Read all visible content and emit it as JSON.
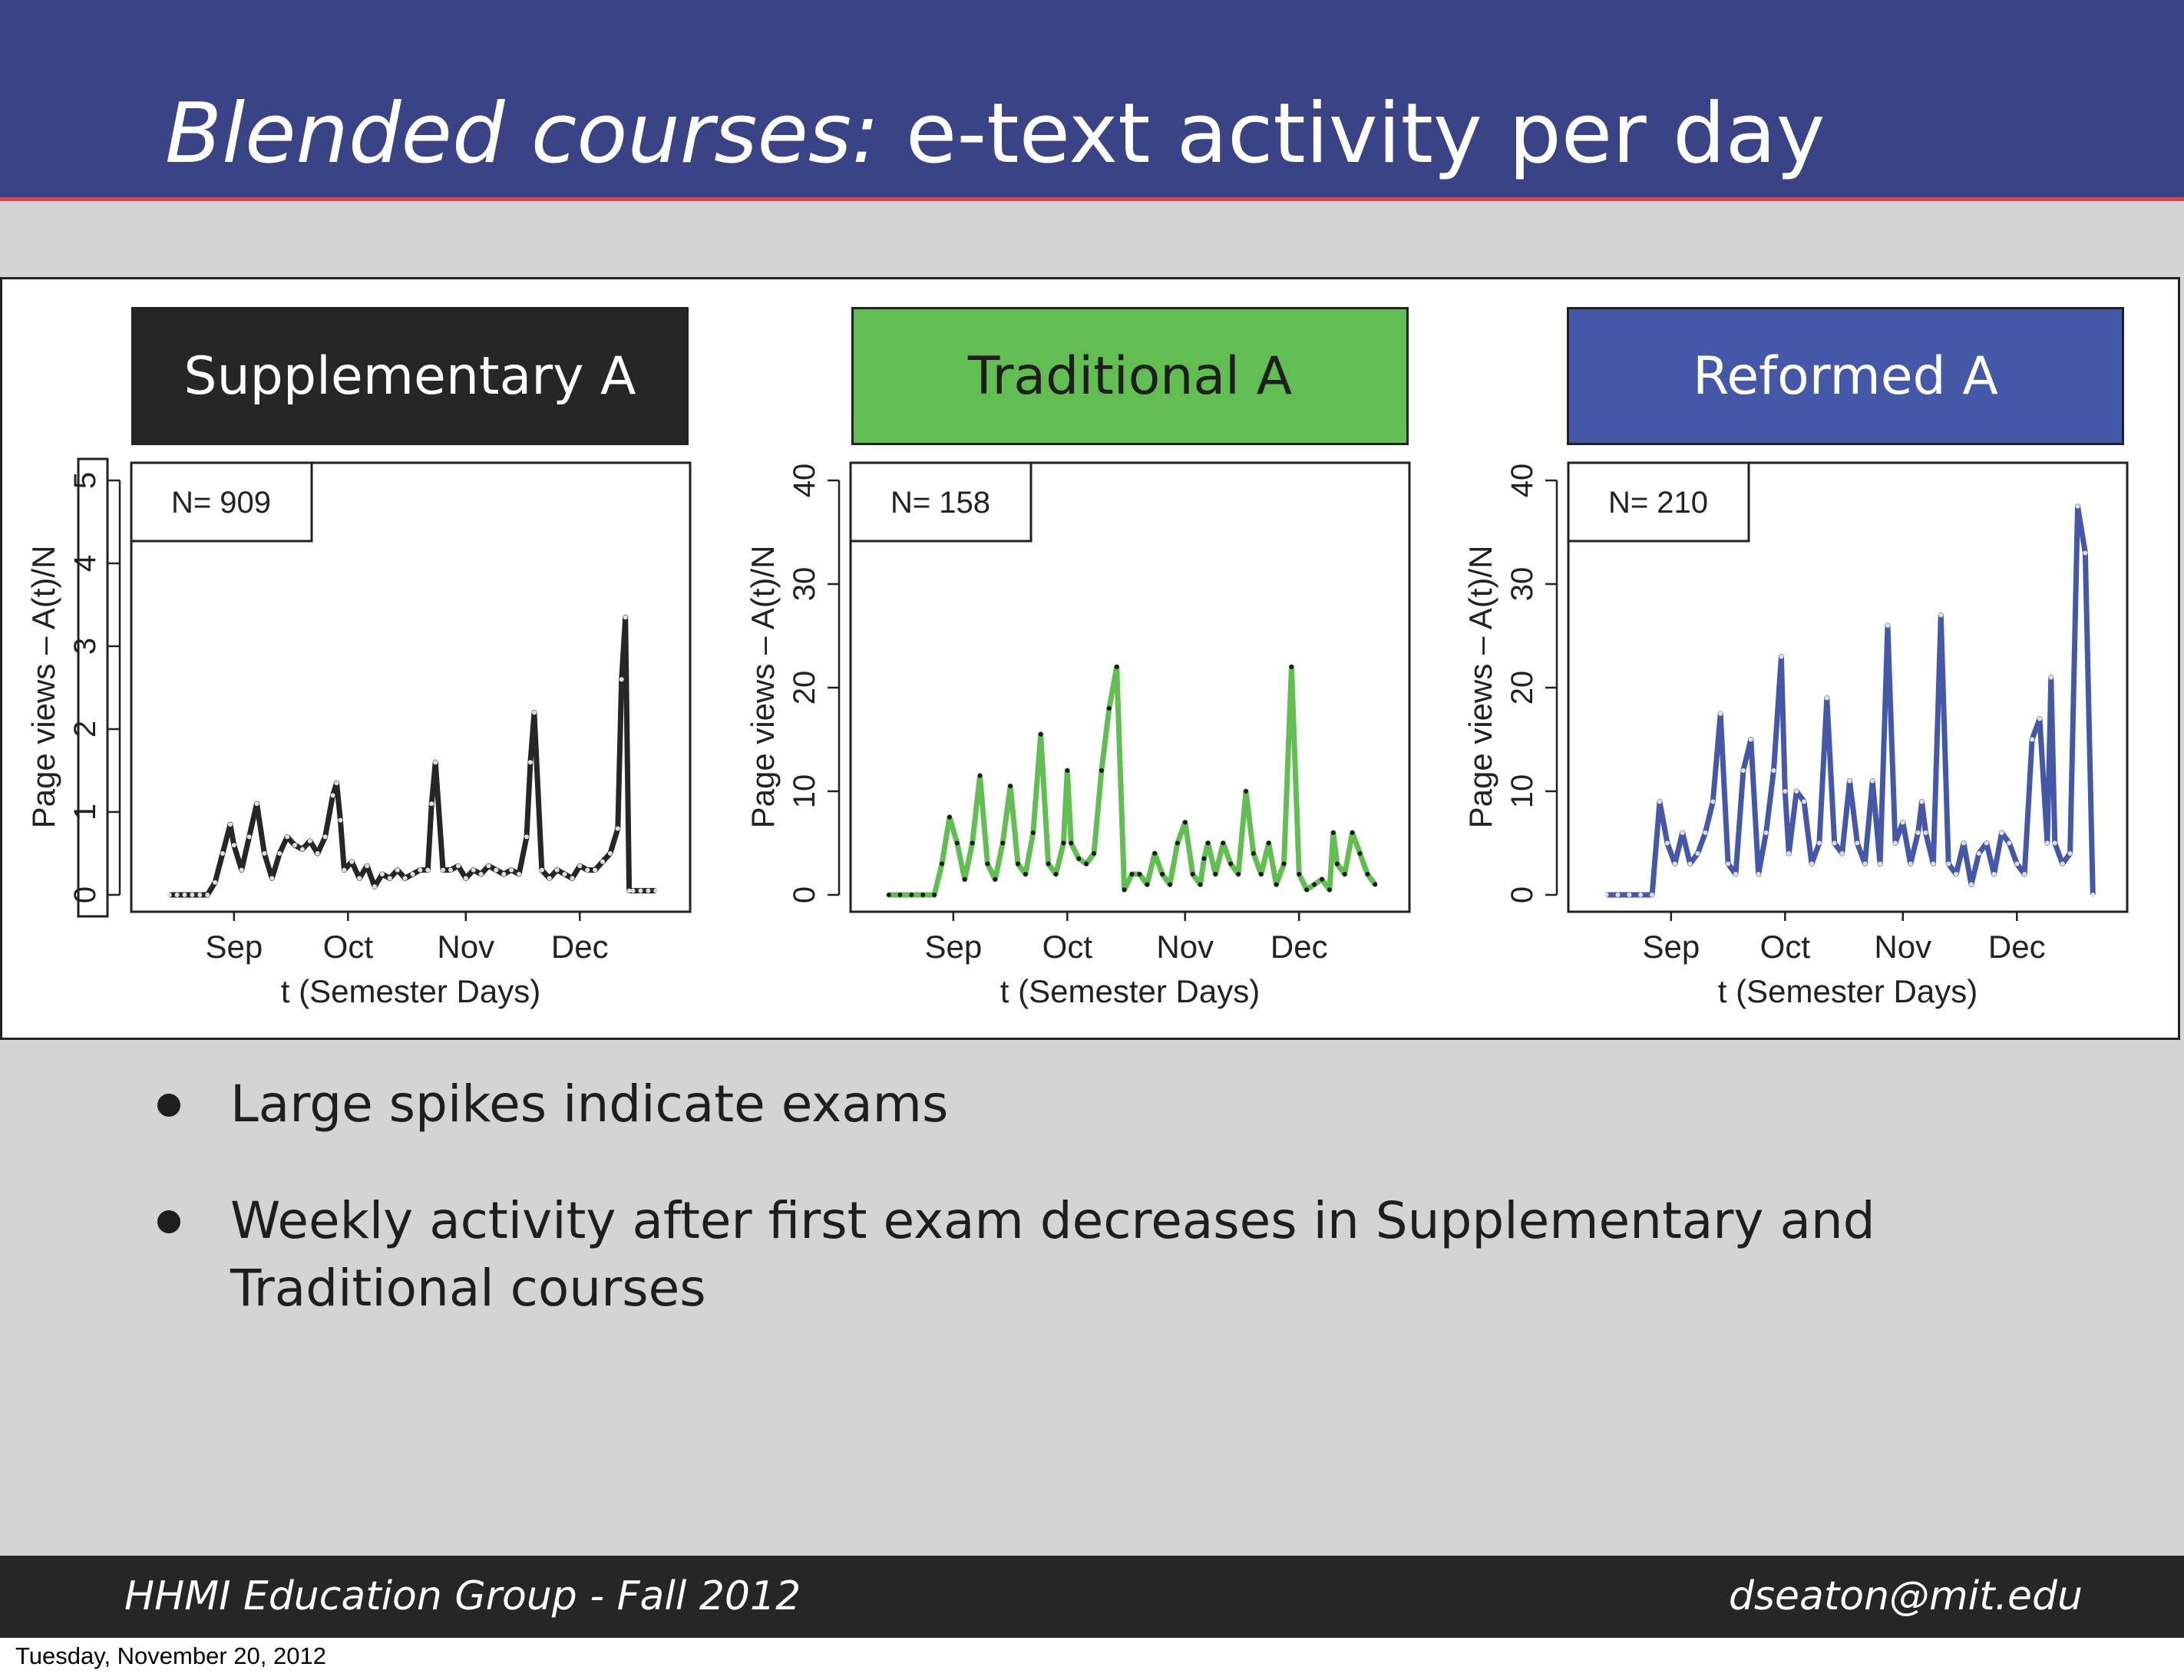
{
  "header": {
    "title_italic": "Blended courses:",
    "title_rest": " e-text activity per day",
    "bg_color": "#3b4387",
    "rule_color": "#d4454e"
  },
  "courses": [
    {
      "label": "Supplementary A",
      "bg_color": "#262626",
      "text_color": "#ffffff"
    },
    {
      "label": "Traditional A",
      "bg_color": "#62bd52",
      "text_color": "#1e1e1e"
    },
    {
      "label": "Reformed A",
      "bg_color": "#4558a8",
      "text_color": "#ffffff"
    }
  ],
  "chart_data": [
    {
      "type": "line",
      "title": "Supplementary A",
      "legend_text": "N= 909",
      "legend_placement": "top-left",
      "xlabel": "t (Semester Days)",
      "ylabel": "Page views – A(t)/N",
      "x_ticks": [
        "Sep",
        "Oct",
        "Nov",
        "Dec"
      ],
      "y_ticks": [
        0,
        1,
        2,
        3,
        4,
        5
      ],
      "ylim": [
        0,
        5
      ],
      "color": "#262626",
      "series": [
        {
          "x": [
            "08-15",
            "08-17",
            "08-19",
            "08-21",
            "08-23",
            "08-25",
            "08-27",
            "08-29",
            "08-31",
            "09-01",
            "09-03",
            "09-05",
            "09-07",
            "09-09",
            "09-11",
            "09-13",
            "09-15",
            "09-17",
            "09-19",
            "09-21",
            "09-23",
            "09-25",
            "09-27",
            "09-28",
            "09-29",
            "09-30",
            "10-02",
            "10-04",
            "10-06",
            "10-08",
            "10-10",
            "10-12",
            "10-14",
            "10-16",
            "10-18",
            "10-20",
            "10-22",
            "10-23",
            "10-24",
            "10-26",
            "10-28",
            "10-30",
            "11-01",
            "11-03",
            "11-05",
            "11-07",
            "11-09",
            "11-11",
            "11-13",
            "11-15",
            "11-17",
            "11-18",
            "11-19",
            "11-21",
            "11-23",
            "11-25",
            "11-27",
            "11-29",
            "12-01",
            "12-03",
            "12-05",
            "12-07",
            "12-09",
            "12-11",
            "12-12",
            "12-13",
            "12-14",
            "12-15",
            "12-17",
            "12-19",
            "12-21"
          ],
          "y": [
            0,
            0,
            0,
            0,
            0,
            0,
            0.15,
            0.5,
            0.85,
            0.6,
            0.3,
            0.7,
            1.1,
            0.5,
            0.2,
            0.5,
            0.7,
            0.6,
            0.55,
            0.65,
            0.5,
            0.7,
            1.2,
            1.35,
            0.9,
            0.3,
            0.4,
            0.2,
            0.35,
            0.1,
            0.25,
            0.2,
            0.3,
            0.2,
            0.25,
            0.3,
            0.3,
            1.1,
            1.6,
            0.3,
            0.3,
            0.35,
            0.2,
            0.3,
            0.25,
            0.35,
            0.3,
            0.25,
            0.3,
            0.25,
            0.7,
            1.6,
            2.2,
            0.3,
            0.2,
            0.3,
            0.25,
            0.2,
            0.35,
            0.3,
            0.3,
            0.4,
            0.5,
            0.8,
            2.6,
            3.35,
            0.05,
            0.05,
            0.05,
            0.05,
            0.05
          ]
        }
      ]
    },
    {
      "type": "line",
      "title": "Traditional A",
      "legend_text": "N= 158",
      "legend_placement": "top-left",
      "xlabel": "t (Semester Days)",
      "ylabel": "Page views – A(t)/N",
      "x_ticks": [
        "Sep",
        "Oct",
        "Nov",
        "Dec"
      ],
      "y_ticks": [
        0,
        10,
        20,
        30,
        40
      ],
      "ylim": [
        0,
        40
      ],
      "color": "#62bd52",
      "series": [
        {
          "x": [
            "08-15",
            "08-18",
            "08-21",
            "08-24",
            "08-27",
            "08-29",
            "08-31",
            "09-02",
            "09-04",
            "09-06",
            "09-08",
            "09-10",
            "09-12",
            "09-14",
            "09-16",
            "09-18",
            "09-20",
            "09-22",
            "09-24",
            "09-26",
            "09-28",
            "09-30",
            "10-01",
            "10-02",
            "10-04",
            "10-06",
            "10-08",
            "10-10",
            "10-12",
            "10-14",
            "10-16",
            "10-18",
            "10-20",
            "10-22",
            "10-24",
            "10-26",
            "10-28",
            "10-30",
            "11-01",
            "11-03",
            "11-05",
            "11-06",
            "11-07",
            "11-09",
            "11-11",
            "11-13",
            "11-15",
            "11-17",
            "11-19",
            "11-21",
            "11-23",
            "11-25",
            "11-27",
            "11-29",
            "12-01",
            "12-03",
            "12-05",
            "12-07",
            "12-09",
            "12-10",
            "12-11",
            "12-13",
            "12-15",
            "12-17",
            "12-19",
            "12-21"
          ],
          "y": [
            0,
            0,
            0,
            0,
            0,
            3,
            7.5,
            5,
            1.5,
            5,
            11.5,
            3,
            1.5,
            5,
            10.5,
            3,
            2,
            6,
            15.5,
            3,
            2,
            5,
            12,
            5,
            3.5,
            3,
            4,
            12,
            18,
            22,
            0.5,
            2,
            2,
            1,
            4,
            2,
            1,
            5,
            7,
            2,
            1,
            3.5,
            5,
            2,
            5,
            3,
            2,
            10,
            4,
            2,
            5,
            1,
            3,
            22,
            2,
            0.5,
            1,
            1.5,
            0.5,
            6,
            3,
            2,
            6,
            4,
            2,
            1
          ]
        }
      ]
    },
    {
      "type": "line",
      "title": "Reformed A",
      "legend_text": "N= 210",
      "legend_placement": "top-left",
      "xlabel": "t (Semester Days)",
      "ylabel": "Page views – A(t)/N",
      "x_ticks": [
        "Sep",
        "Oct",
        "Nov",
        "Dec"
      ],
      "y_ticks": [
        0,
        10,
        20,
        30,
        40
      ],
      "ylim": [
        0,
        40
      ],
      "color": "#4558a8",
      "series": [
        {
          "x": [
            "08-15",
            "08-18",
            "08-21",
            "08-24",
            "08-27",
            "08-29",
            "08-31",
            "09-02",
            "09-04",
            "09-06",
            "09-08",
            "09-10",
            "09-12",
            "09-14",
            "09-16",
            "09-18",
            "09-20",
            "09-22",
            "09-24",
            "09-26",
            "09-28",
            "09-30",
            "10-01",
            "10-02",
            "10-04",
            "10-06",
            "10-08",
            "10-10",
            "10-12",
            "10-14",
            "10-16",
            "10-18",
            "10-20",
            "10-22",
            "10-24",
            "10-26",
            "10-28",
            "10-30",
            "11-01",
            "11-03",
            "11-05",
            "11-06",
            "11-07",
            "11-09",
            "11-11",
            "11-13",
            "11-15",
            "11-17",
            "11-19",
            "11-21",
            "11-23",
            "11-25",
            "11-27",
            "11-29",
            "12-01",
            "12-03",
            "12-05",
            "12-07",
            "12-09",
            "12-10",
            "12-11",
            "12-13",
            "12-15",
            "12-17",
            "12-19",
            "12-21"
          ],
          "y": [
            0,
            0,
            0,
            0,
            0,
            9,
            5,
            3,
            6,
            3,
            4,
            6,
            9,
            17.5,
            3,
            2,
            12,
            15,
            2,
            6,
            12,
            23,
            10,
            4,
            10,
            9,
            3,
            5,
            19,
            5,
            4,
            11,
            5,
            3,
            11,
            3,
            26,
            5,
            7,
            3,
            6,
            9,
            6,
            3,
            27,
            3,
            2,
            5,
            1,
            4,
            5,
            2,
            6,
            5,
            3,
            2,
            15,
            17,
            5,
            21,
            5,
            3,
            4,
            37.5,
            33,
            0
          ]
        }
      ]
    }
  ],
  "bullets": [
    "Large spikes indicate exams",
    "Weekly activity after first exam decreases in Supplementary and Traditional courses"
  ],
  "footer": {
    "left": "HHMI Education Group - Fall 2012",
    "right": "dseaton@mit.edu"
  },
  "print_date": "Tuesday, November 20, 2012"
}
